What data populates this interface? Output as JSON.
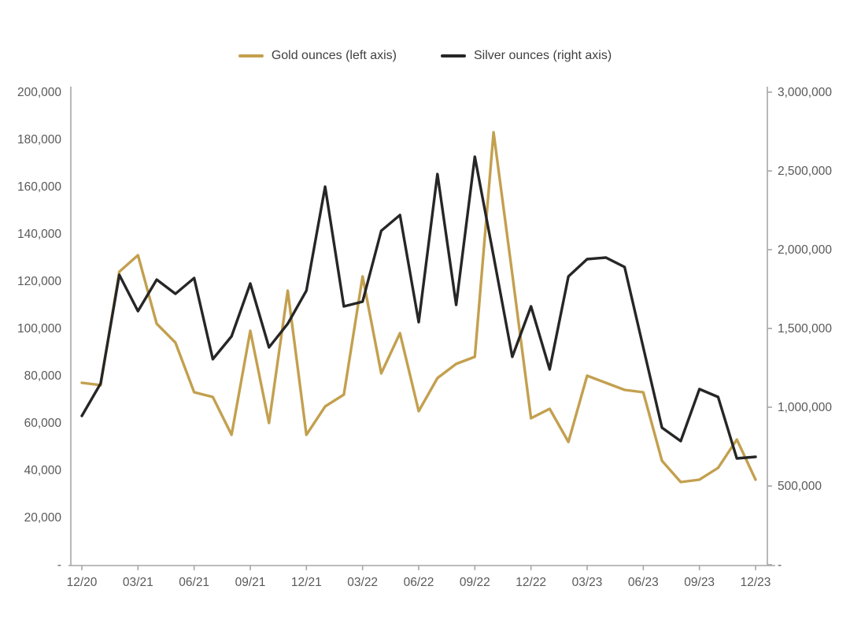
{
  "chart": {
    "background": "#ffffff",
    "axis_line_color": "#a6a6a6",
    "axis_label_color": "#595959",
    "legend_text_color": "#3f3f3f"
  },
  "legend": {
    "items": [
      {
        "label": "Gold ounces (left axis)",
        "color": "#c3a04f"
      },
      {
        "label": "Silver ounces (right axis)",
        "color": "#262626"
      }
    ]
  },
  "chart_data": {
    "type": "line",
    "title": "",
    "x": [
      "12/20",
      "01/21",
      "02/21",
      "03/21",
      "04/21",
      "05/21",
      "06/21",
      "07/21",
      "08/21",
      "09/21",
      "10/21",
      "11/21",
      "12/21",
      "01/22",
      "02/22",
      "03/22",
      "04/22",
      "05/22",
      "06/22",
      "07/22",
      "08/22",
      "09/22",
      "10/22",
      "11/22",
      "12/22",
      "01/23",
      "02/23",
      "03/23",
      "04/23",
      "05/23",
      "06/23",
      "07/23",
      "08/23",
      "09/23",
      "10/23",
      "11/23",
      "12/23"
    ],
    "x_tick_labels": [
      "12/20",
      "03/21",
      "06/21",
      "09/21",
      "12/21",
      "03/22",
      "06/22",
      "09/22",
      "12/22",
      "03/23",
      "06/23",
      "09/23",
      "12/23"
    ],
    "series": [
      {
        "name": "Gold ounces (left axis)",
        "axis": "left",
        "color": "#c3a04f",
        "values": [
          77000,
          76000,
          124000,
          131000,
          102000,
          94000,
          73000,
          71000,
          55000,
          99000,
          60000,
          116000,
          55000,
          67000,
          72000,
          122000,
          81000,
          98000,
          65000,
          79000,
          85000,
          88000,
          183000,
          123000,
          62000,
          66000,
          52000,
          80000,
          77000,
          74000,
          73000,
          44000,
          35000,
          36000,
          41000,
          53000,
          36000
        ]
      },
      {
        "name": "Silver ounces (right axis)",
        "axis": "right",
        "color": "#262626",
        "values": [
          945000,
          1150000,
          1840000,
          1610000,
          1810000,
          1720000,
          1820000,
          1305000,
          1450000,
          1785000,
          1380000,
          1530000,
          1740000,
          2400000,
          1640000,
          1670000,
          2120000,
          2220000,
          1540000,
          2480000,
          1650000,
          2590000,
          1960000,
          1320000,
          1640000,
          1240000,
          1830000,
          1940000,
          1950000,
          1890000,
          1380000,
          870000,
          785000,
          1115000,
          1065000,
          675000,
          685000
        ]
      }
    ],
    "left_axis": {
      "min": 0,
      "max": 200000,
      "step": 20000,
      "zero_label": "-",
      "tick_labels": [
        "200,000",
        "180,000",
        "160,000",
        "140,000",
        "120,000",
        "100,000",
        "80,000",
        "60,000",
        "40,000",
        "20,000",
        "-"
      ]
    },
    "right_axis": {
      "min": 0,
      "max": 3000000,
      "step": 500000,
      "zero_label": "-",
      "tick_labels": [
        "3,000,000",
        "2,500,000",
        "2,000,000",
        "1,500,000",
        "1,000,000",
        "500,000",
        "-"
      ]
    },
    "grid": false,
    "legend_position": "top"
  }
}
